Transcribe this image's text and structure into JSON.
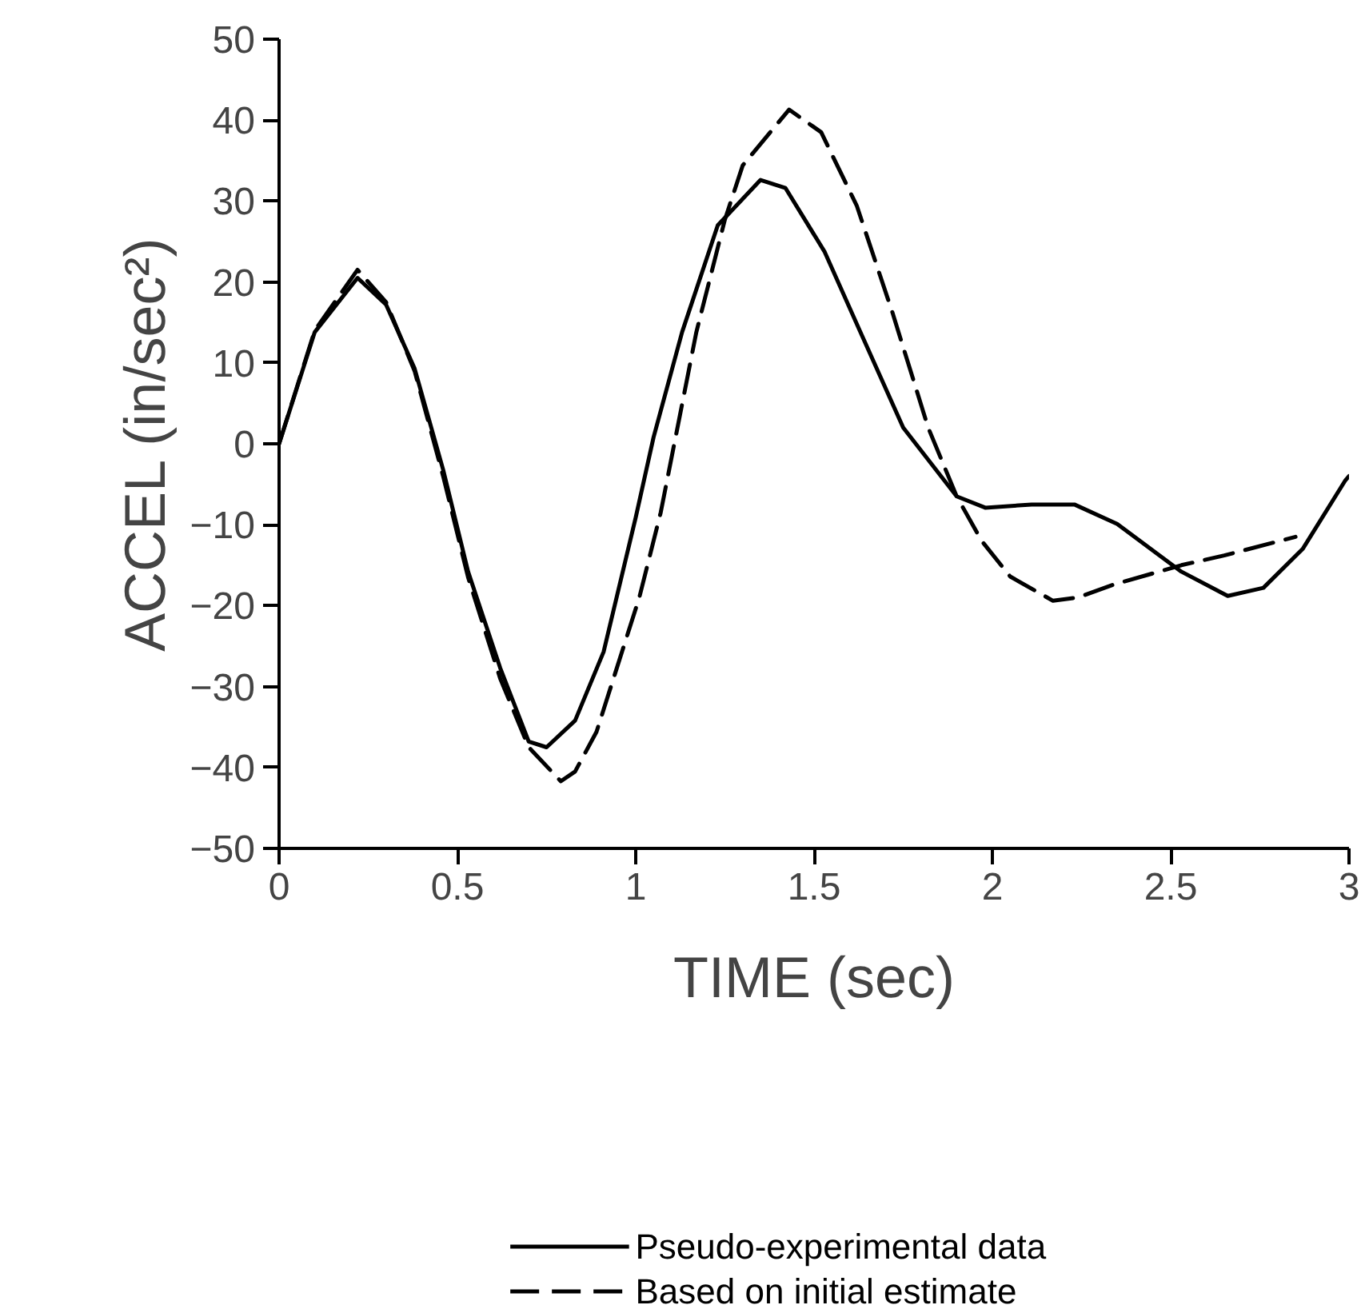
{
  "chart_data": {
    "type": "line",
    "xlabel": "TIME (sec)",
    "ylabel": "ACCEL (in/sec²)",
    "xlim": [
      0,
      3
    ],
    "xticks": [
      0,
      0.5,
      1,
      1.5,
      2,
      2.5,
      3
    ],
    "ylim": [
      -50,
      50
    ],
    "yticks": [
      -50,
      -40,
      -30,
      -20,
      -10,
      0,
      10,
      20,
      30,
      40,
      50
    ],
    "grid": false,
    "legend": "bottom",
    "marker": "none",
    "series": [
      {
        "name": "Pseudo-experimental data",
        "color": "#000000",
        "line_style": "solid",
        "x": [
          0,
          0.1,
          0.22,
          0.3,
          0.38,
          0.46,
          0.53,
          0.62,
          0.7,
          0.75,
          0.83,
          0.91,
          1.0,
          1.05,
          1.13,
          1.23,
          1.35,
          1.42,
          1.53,
          1.63,
          1.75,
          1.9,
          1.98,
          2.11,
          2.23,
          2.35,
          2.53,
          2.66,
          2.76,
          2.87,
          2.99,
          3.0
        ],
        "values": [
          0,
          13.8,
          20.5,
          17.2,
          9.3,
          -3.2,
          -15.8,
          -27.7,
          -36.8,
          -37.5,
          -34.2,
          -25.7,
          -9.1,
          0.8,
          13.8,
          27,
          32.6,
          31.6,
          23.7,
          13.8,
          2,
          -6.5,
          -7.9,
          -7.5,
          -7.5,
          -9.9,
          -15.8,
          -18.8,
          -17.8,
          -13,
          -4.5,
          -4
        ]
      },
      {
        "name": "Based on initial estimate",
        "color": "#000000",
        "line_style": "dashed",
        "x": [
          0,
          0.1,
          0.22,
          0.3,
          0.38,
          0.46,
          0.53,
          0.62,
          0.7,
          0.79,
          0.83,
          0.89,
          1.01,
          1.07,
          1.17,
          1.25,
          1.3,
          1.43,
          1.52,
          1.62,
          1.72,
          1.82,
          1.9,
          1.97,
          2.05,
          2.17,
          2.24,
          2.34,
          2.53,
          2.65,
          2.85
        ],
        "values": [
          0,
          14,
          21.5,
          17.5,
          9,
          -4,
          -16.5,
          -29,
          -37.5,
          -41.7,
          -40.5,
          -35.6,
          -19,
          -8.5,
          13.8,
          27.7,
          34.4,
          41.3,
          38.5,
          29.4,
          16.2,
          2,
          -6.5,
          -12,
          -16.4,
          -19.4,
          -19,
          -17.4,
          -15,
          -13.8,
          -11.5
        ]
      }
    ]
  }
}
